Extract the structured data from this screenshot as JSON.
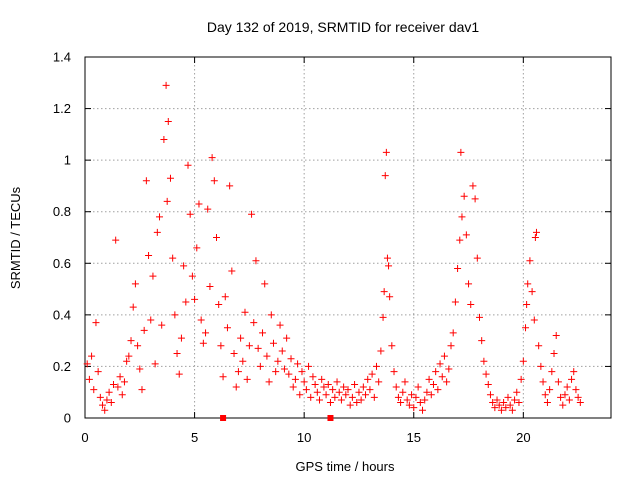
{
  "chart_data": {
    "type": "scatter",
    "title": "Day 132 of 2019, SRMTID for receiver dav1",
    "xlabel": "GPS time / hours",
    "ylabel": "SRMTID / TECUs",
    "xlim": [
      0,
      24
    ],
    "ylim": [
      0,
      1.4
    ],
    "grid": true,
    "xticks": [
      0,
      5,
      10,
      15,
      20
    ],
    "xtick_labels": [
      "0",
      "5",
      "10",
      "15",
      "20"
    ],
    "yticks": [
      0,
      0.2,
      0.4,
      0.6,
      0.8,
      1.0,
      1.2,
      1.4
    ],
    "ytick_labels": [
      "0",
      "0.2",
      "0.4",
      "0.6",
      "0.8",
      "1",
      "1.2",
      "1.4"
    ],
    "marker": "plus",
    "series": [
      {
        "name": "SRMTID",
        "color": "#ff0000",
        "points": [
          [
            0.1,
            0.21
          ],
          [
            0.2,
            0.15
          ],
          [
            0.3,
            0.24
          ],
          [
            0.4,
            0.11
          ],
          [
            0.5,
            0.37
          ],
          [
            0.6,
            0.18
          ],
          [
            0.7,
            0.08
          ],
          [
            0.8,
            0.05
          ],
          [
            0.9,
            0.03
          ],
          [
            1.0,
            0.07
          ],
          [
            1.1,
            0.1
          ],
          [
            1.2,
            0.06
          ],
          [
            1.3,
            0.13
          ],
          [
            1.4,
            0.69
          ],
          [
            1.5,
            0.12
          ],
          [
            1.6,
            0.16
          ],
          [
            1.7,
            0.09
          ],
          [
            1.8,
            0.14
          ],
          [
            1.9,
            0.22
          ],
          [
            2.0,
            0.24
          ],
          [
            2.1,
            0.3
          ],
          [
            2.2,
            0.43
          ],
          [
            2.3,
            0.52
          ],
          [
            2.4,
            0.28
          ],
          [
            2.5,
            0.19
          ],
          [
            2.6,
            0.11
          ],
          [
            2.7,
            0.34
          ],
          [
            2.8,
            0.92
          ],
          [
            2.9,
            0.63
          ],
          [
            3.0,
            0.38
          ],
          [
            3.1,
            0.55
          ],
          [
            3.2,
            0.21
          ],
          [
            3.3,
            0.72
          ],
          [
            3.4,
            0.78
          ],
          [
            3.5,
            0.36
          ],
          [
            3.6,
            1.08
          ],
          [
            3.7,
            1.29
          ],
          [
            3.75,
            0.84
          ],
          [
            3.8,
            1.15
          ],
          [
            3.9,
            0.93
          ],
          [
            4.0,
            0.62
          ],
          [
            4.1,
            0.4
          ],
          [
            4.2,
            0.25
          ],
          [
            4.3,
            0.17
          ],
          [
            4.4,
            0.31
          ],
          [
            4.5,
            0.59
          ],
          [
            4.6,
            0.45
          ],
          [
            4.7,
            0.98
          ],
          [
            4.8,
            0.79
          ],
          [
            4.9,
            0.55
          ],
          [
            5.0,
            0.46
          ],
          [
            5.1,
            0.66
          ],
          [
            5.2,
            0.83
          ],
          [
            5.3,
            0.38
          ],
          [
            5.4,
            0.29
          ],
          [
            5.5,
            0.33
          ],
          [
            5.6,
            0.81
          ],
          [
            5.7,
            0.51
          ],
          [
            5.8,
            1.01
          ],
          [
            5.9,
            0.92
          ],
          [
            6.0,
            0.7
          ],
          [
            6.1,
            0.44
          ],
          [
            6.2,
            0.28
          ],
          [
            6.3,
            0.16
          ],
          [
            6.4,
            0.47
          ],
          [
            6.5,
            0.35
          ],
          [
            6.6,
            0.9
          ],
          [
            6.7,
            0.57
          ],
          [
            6.8,
            0.25
          ],
          [
            6.9,
            0.12
          ],
          [
            7.0,
            0.18
          ],
          [
            7.1,
            0.31
          ],
          [
            7.2,
            0.22
          ],
          [
            7.3,
            0.41
          ],
          [
            7.4,
            0.15
          ],
          [
            7.5,
            0.28
          ],
          [
            7.6,
            0.79
          ],
          [
            7.7,
            0.37
          ],
          [
            7.8,
            0.61
          ],
          [
            7.9,
            0.27
          ],
          [
            8.0,
            0.2
          ],
          [
            8.1,
            0.33
          ],
          [
            8.2,
            0.52
          ],
          [
            8.3,
            0.24
          ],
          [
            8.4,
            0.14
          ],
          [
            8.5,
            0.4
          ],
          [
            8.6,
            0.29
          ],
          [
            8.7,
            0.18
          ],
          [
            8.8,
            0.22
          ],
          [
            8.9,
            0.36
          ],
          [
            9.0,
            0.26
          ],
          [
            9.1,
            0.19
          ],
          [
            9.2,
            0.31
          ],
          [
            9.3,
            0.17
          ],
          [
            9.4,
            0.23
          ],
          [
            9.5,
            0.12
          ],
          [
            9.6,
            0.15
          ],
          [
            9.7,
            0.21
          ],
          [
            9.8,
            0.09
          ],
          [
            9.9,
            0.18
          ],
          [
            10.0,
            0.14
          ],
          [
            10.1,
            0.11
          ],
          [
            10.2,
            0.2
          ],
          [
            10.3,
            0.08
          ],
          [
            10.4,
            0.16
          ],
          [
            10.5,
            0.13
          ],
          [
            10.6,
            0.1
          ],
          [
            10.7,
            0.07
          ],
          [
            10.8,
            0.15
          ],
          [
            10.9,
            0.12
          ],
          [
            11.0,
            0.09
          ],
          [
            11.1,
            0.13
          ],
          [
            11.2,
            0.06
          ],
          [
            11.3,
            0.11
          ],
          [
            11.4,
            0.08
          ],
          [
            11.5,
            0.14
          ],
          [
            11.6,
            0.1
          ],
          [
            11.7,
            0.07
          ],
          [
            11.8,
            0.12
          ],
          [
            11.9,
            0.09
          ],
          [
            12.0,
            0.11
          ],
          [
            12.1,
            0.05
          ],
          [
            12.2,
            0.08
          ],
          [
            12.3,
            0.13
          ],
          [
            12.4,
            0.06
          ],
          [
            12.5,
            0.1
          ],
          [
            12.6,
            0.07
          ],
          [
            12.7,
            0.12
          ],
          [
            12.8,
            0.09
          ],
          [
            12.9,
            0.15
          ],
          [
            13.0,
            0.11
          ],
          [
            13.1,
            0.17
          ],
          [
            13.2,
            0.08
          ],
          [
            13.3,
            0.2
          ],
          [
            13.4,
            0.14
          ],
          [
            13.5,
            0.26
          ],
          [
            13.6,
            0.39
          ],
          [
            13.65,
            0.49
          ],
          [
            13.7,
            0.94
          ],
          [
            13.75,
            1.03
          ],
          [
            13.8,
            0.62
          ],
          [
            13.85,
            0.59
          ],
          [
            13.9,
            0.47
          ],
          [
            14.0,
            0.28
          ],
          [
            14.1,
            0.18
          ],
          [
            14.2,
            0.12
          ],
          [
            14.3,
            0.08
          ],
          [
            14.4,
            0.06
          ],
          [
            14.5,
            0.1
          ],
          [
            14.6,
            0.14
          ],
          [
            14.7,
            0.07
          ],
          [
            14.8,
            0.05
          ],
          [
            14.9,
            0.09
          ],
          [
            15.0,
            0.04
          ],
          [
            15.1,
            0.08
          ],
          [
            15.2,
            0.12
          ],
          [
            15.3,
            0.06
          ],
          [
            15.4,
            0.03
          ],
          [
            15.5,
            0.07
          ],
          [
            15.6,
            0.1
          ],
          [
            15.7,
            0.15
          ],
          [
            15.8,
            0.09
          ],
          [
            15.9,
            0.13
          ],
          [
            16.0,
            0.18
          ],
          [
            16.1,
            0.11
          ],
          [
            16.2,
            0.21
          ],
          [
            16.3,
            0.16
          ],
          [
            16.4,
            0.24
          ],
          [
            16.5,
            0.14
          ],
          [
            16.6,
            0.19
          ],
          [
            16.7,
            0.28
          ],
          [
            16.8,
            0.33
          ],
          [
            16.9,
            0.45
          ],
          [
            17.0,
            0.58
          ],
          [
            17.1,
            0.69
          ],
          [
            17.15,
            1.03
          ],
          [
            17.2,
            0.78
          ],
          [
            17.3,
            0.86
          ],
          [
            17.4,
            0.71
          ],
          [
            17.5,
            0.52
          ],
          [
            17.6,
            0.44
          ],
          [
            17.7,
            0.9
          ],
          [
            17.8,
            0.85
          ],
          [
            17.9,
            0.62
          ],
          [
            18.0,
            0.39
          ],
          [
            18.1,
            0.3
          ],
          [
            18.2,
            0.22
          ],
          [
            18.3,
            0.17
          ],
          [
            18.4,
            0.13
          ],
          [
            18.5,
            0.09
          ],
          [
            18.6,
            0.06
          ],
          [
            18.7,
            0.04
          ],
          [
            18.8,
            0.07
          ],
          [
            18.9,
            0.05
          ],
          [
            19.0,
            0.03
          ],
          [
            19.1,
            0.06
          ],
          [
            19.2,
            0.04
          ],
          [
            19.3,
            0.08
          ],
          [
            19.4,
            0.05
          ],
          [
            19.5,
            0.03
          ],
          [
            19.6,
            0.07
          ],
          [
            19.7,
            0.1
          ],
          [
            19.8,
            0.06
          ],
          [
            19.9,
            0.15
          ],
          [
            20.0,
            0.22
          ],
          [
            20.1,
            0.35
          ],
          [
            20.15,
            0.44
          ],
          [
            20.2,
            0.52
          ],
          [
            20.3,
            0.61
          ],
          [
            20.4,
            0.49
          ],
          [
            20.5,
            0.38
          ],
          [
            20.55,
            0.7
          ],
          [
            20.6,
            0.72
          ],
          [
            20.7,
            0.28
          ],
          [
            20.8,
            0.2
          ],
          [
            20.9,
            0.14
          ],
          [
            21.0,
            0.09
          ],
          [
            21.1,
            0.06
          ],
          [
            21.2,
            0.11
          ],
          [
            21.3,
            0.18
          ],
          [
            21.4,
            0.25
          ],
          [
            21.5,
            0.32
          ],
          [
            21.6,
            0.14
          ],
          [
            21.7,
            0.08
          ],
          [
            21.8,
            0.05
          ],
          [
            21.9,
            0.09
          ],
          [
            22.0,
            0.12
          ],
          [
            22.1,
            0.07
          ],
          [
            22.2,
            0.15
          ],
          [
            22.3,
            0.18
          ],
          [
            22.4,
            0.11
          ],
          [
            22.5,
            0.08
          ],
          [
            22.6,
            0.06
          ]
        ]
      },
      {
        "name": "zero-value markers",
        "color": "#ff0000",
        "marker": "square",
        "points": [
          [
            6.3,
            0.0
          ],
          [
            11.2,
            0.0
          ]
        ]
      }
    ]
  }
}
